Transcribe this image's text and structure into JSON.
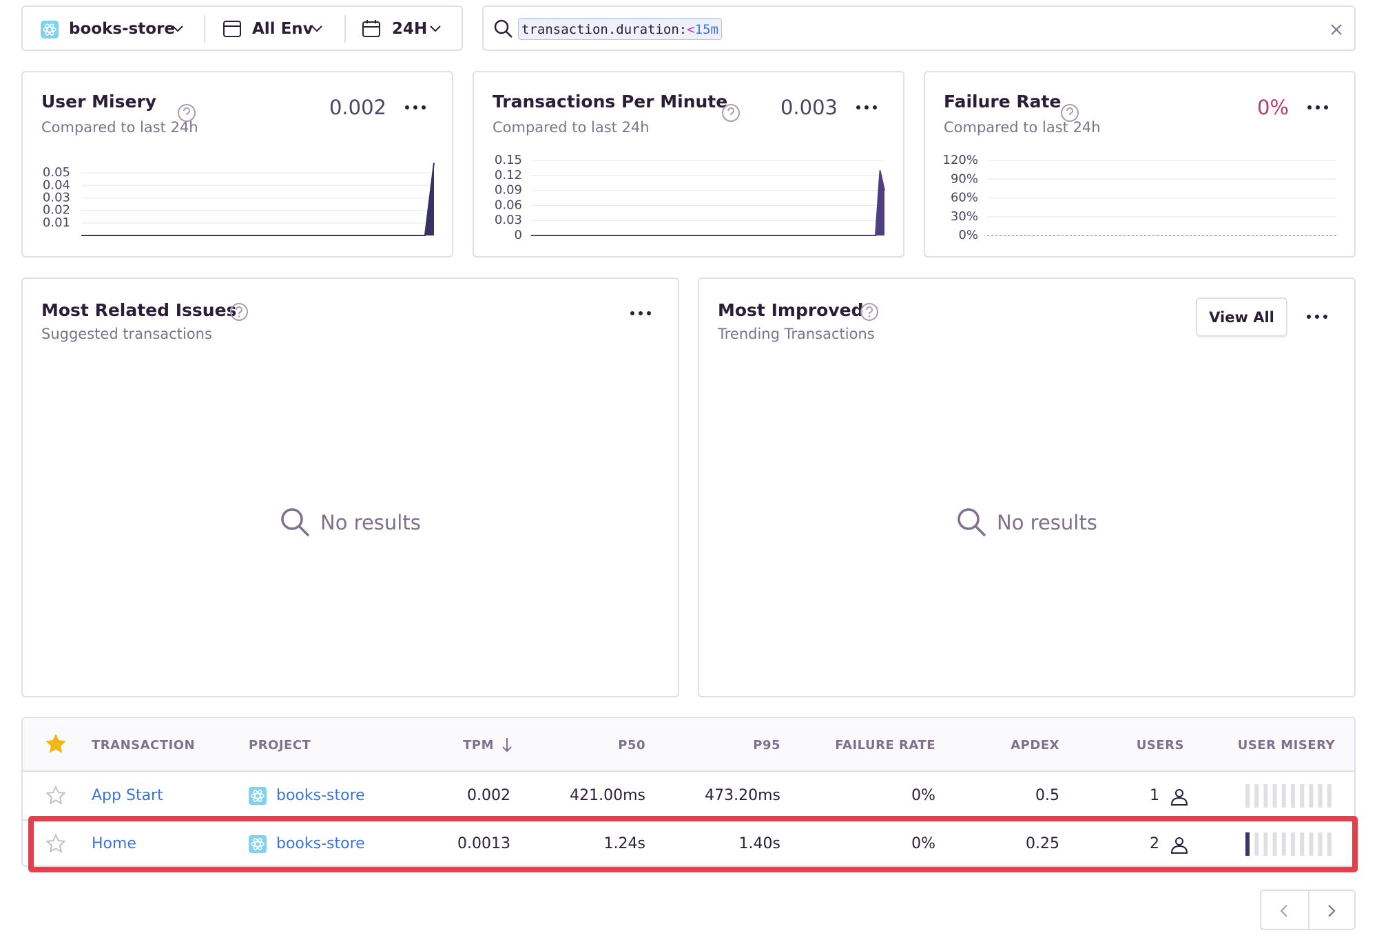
{
  "toolbar": {
    "project": "books-store",
    "environment": "All Env",
    "period": "24H",
    "search": {
      "key": "transaction.duration:",
      "operator": "<",
      "value": "15m"
    }
  },
  "cards": [
    {
      "title": "User Misery",
      "subtitle": "Compared to last 24h",
      "value": "0.002",
      "chart": {
        "type": "area",
        "color": "#353264",
        "ylim": [
          0,
          0.06
        ],
        "yticks": [
          0.01,
          0.02,
          0.03,
          0.04,
          0.05
        ],
        "values": [
          0,
          0,
          0,
          0,
          0,
          0,
          0,
          0,
          0,
          0,
          0,
          0,
          0,
          0,
          0,
          0,
          0,
          0,
          0,
          0,
          0,
          0,
          0,
          0,
          0,
          0,
          0,
          0,
          0,
          0,
          0,
          0,
          0,
          0,
          0,
          0,
          0,
          0,
          0,
          0.058
        ]
      }
    },
    {
      "title": "Transactions Per Minute",
      "subtitle": "Compared to last 24h",
      "value": "0.003",
      "chart": {
        "type": "area",
        "color": "#4e3f80",
        "ylim": [
          0,
          0.15
        ],
        "yticks": [
          0,
          0.03,
          0.06,
          0.09,
          0.12,
          0.15
        ],
        "values": [
          0,
          0,
          0,
          0,
          0,
          0,
          0,
          0,
          0,
          0,
          0,
          0,
          0,
          0,
          0,
          0,
          0,
          0,
          0,
          0,
          0,
          0,
          0,
          0,
          0,
          0,
          0,
          0,
          0,
          0,
          0,
          0,
          0,
          0,
          0,
          0,
          0,
          0,
          0,
          0,
          0,
          0,
          0,
          0,
          0,
          0,
          0,
          0,
          0,
          0,
          0,
          0,
          0,
          0,
          0,
          0,
          0,
          0,
          0,
          0,
          0,
          0,
          0,
          0,
          0,
          0,
          0,
          0,
          0,
          0,
          0,
          0,
          0,
          0,
          0,
          0,
          0,
          0,
          0.13,
          0.09
        ]
      }
    },
    {
      "title": "Failure Rate",
      "subtitle": "Compared to last 24h",
      "value": "0%",
      "chart": {
        "type": "area",
        "color": "#c9a5cf",
        "ylim": [
          0,
          120
        ],
        "yticks": [
          {
            "value": 0,
            "label": "0%"
          },
          {
            "value": 30,
            "label": "30%"
          },
          {
            "value": 60,
            "label": "60%"
          },
          {
            "value": 90,
            "label": "90%"
          },
          {
            "value": 120,
            "label": "120%"
          }
        ],
        "values": [
          0,
          0,
          0,
          0,
          0,
          0,
          0,
          0,
          0,
          0,
          0,
          0,
          0,
          0,
          0,
          0,
          0,
          0,
          0,
          0,
          0,
          0,
          0,
          0,
          0,
          0,
          0,
          0,
          0,
          0,
          0,
          0,
          0,
          0,
          0,
          0,
          0,
          0,
          0,
          0
        ]
      }
    }
  ],
  "panels": [
    {
      "title": "Most Related Issues",
      "subtitle": "Suggested transactions",
      "empty": "No results"
    },
    {
      "title": "Most Improved",
      "subtitle": "Trending Transactions",
      "empty": "No results",
      "action": "View All"
    }
  ],
  "table": {
    "columns": [
      "TRANSACTION",
      "PROJECT",
      "TPM",
      "P50",
      "P95",
      "FAILURE RATE",
      "APDEX",
      "USERS",
      "USER MISERY"
    ],
    "rows": [
      [
        "App Start",
        "books-store",
        "0.002",
        "421.00ms",
        "473.20ms",
        "0%",
        "0.5",
        "1"
      ],
      [
        "Home",
        "books-store",
        "0.0013",
        "1.24s",
        "1.40s",
        "0%",
        "0.25",
        "2"
      ]
    ]
  }
}
